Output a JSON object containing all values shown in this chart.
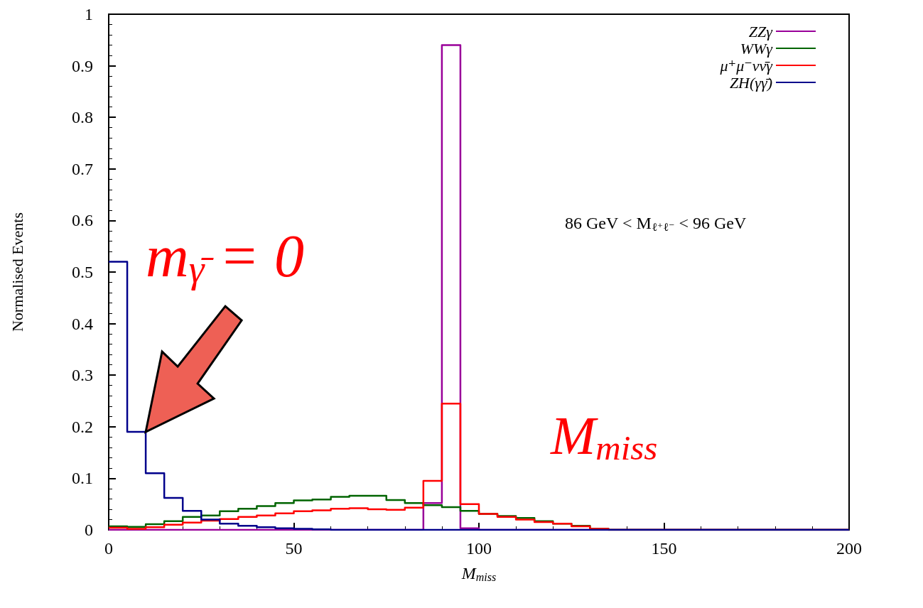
{
  "chart_data": {
    "type": "histogram",
    "xlabel": "M$_{miss}$",
    "ylabel": "Normalised Events",
    "bins": [
      0,
      5,
      10,
      15,
      20,
      25,
      30,
      35,
      40,
      45,
      50,
      55,
      60,
      65,
      70,
      75,
      80,
      85,
      90,
      95,
      100,
      105,
      110,
      115,
      120,
      125,
      130,
      135,
      140,
      145,
      150,
      155,
      160,
      165,
      170,
      175,
      180,
      185,
      190,
      195,
      200
    ],
    "series": [
      {
        "name": "ZZγ",
        "color": "#990099",
        "values": [
          0,
          0,
          0,
          0,
          0,
          0,
          0,
          0,
          0,
          0,
          0,
          0,
          0,
          0,
          0,
          0,
          0,
          0.052,
          0.94,
          0.003,
          0,
          0,
          0,
          0,
          0,
          0,
          0,
          0,
          0,
          0,
          0,
          0,
          0,
          0,
          0,
          0,
          0,
          0,
          0,
          0
        ]
      },
      {
        "name": "WWγ",
        "color": "#006400",
        "values": [
          0.007,
          0.006,
          0.011,
          0.017,
          0.025,
          0.028,
          0.036,
          0.041,
          0.046,
          0.052,
          0.057,
          0.059,
          0.064,
          0.066,
          0.066,
          0.058,
          0.052,
          0.048,
          0.044,
          0.037,
          0.031,
          0.027,
          0.023,
          0.017,
          0.012,
          0.008,
          0.002,
          0,
          0,
          0,
          0,
          0,
          0,
          0,
          0,
          0,
          0,
          0,
          0,
          0
        ]
      },
      {
        "name": "μ⁺μ⁻νν̄γ",
        "color": "#ff0000",
        "values": [
          0.004,
          0.002,
          0.005,
          0.01,
          0.014,
          0.018,
          0.021,
          0.025,
          0.028,
          0.032,
          0.036,
          0.038,
          0.041,
          0.042,
          0.04,
          0.039,
          0.043,
          0.095,
          0.245,
          0.05,
          0.031,
          0.025,
          0.02,
          0.015,
          0.012,
          0.007,
          0.002,
          0,
          0,
          0,
          0,
          0,
          0,
          0,
          0,
          0,
          0,
          0,
          0,
          0
        ]
      },
      {
        "name": "ZH(γγ̄)",
        "color": "#00008b",
        "values": [
          0.52,
          0.19,
          0.11,
          0.062,
          0.037,
          0.02,
          0.012,
          0.008,
          0.005,
          0.003,
          0.002,
          0.001,
          0,
          0,
          0,
          0,
          0,
          0,
          0,
          0,
          0,
          0,
          0,
          0,
          0,
          0,
          0,
          0,
          0,
          0,
          0,
          0,
          0,
          0,
          0,
          0,
          0,
          0,
          0,
          0
        ]
      }
    ],
    "xlim": [
      0,
      200
    ],
    "xticks": [
      0,
      50,
      100,
      150,
      200
    ],
    "ylim": [
      0,
      1
    ],
    "yticks": [
      0,
      0.1,
      0.2,
      0.3,
      0.4,
      0.5,
      0.6,
      0.7,
      0.8,
      0.9,
      1
    ],
    "grid": false,
    "legend": "top right",
    "annotations": [
      "86 GeV < M$_{ℓ⁺ℓ⁻}$ < 96 GeV",
      {
        "text": "m$_{γ̄}$ = 0",
        "x": 10,
        "y": 0.19
      },
      "M$_{miss}$"
    ]
  }
}
